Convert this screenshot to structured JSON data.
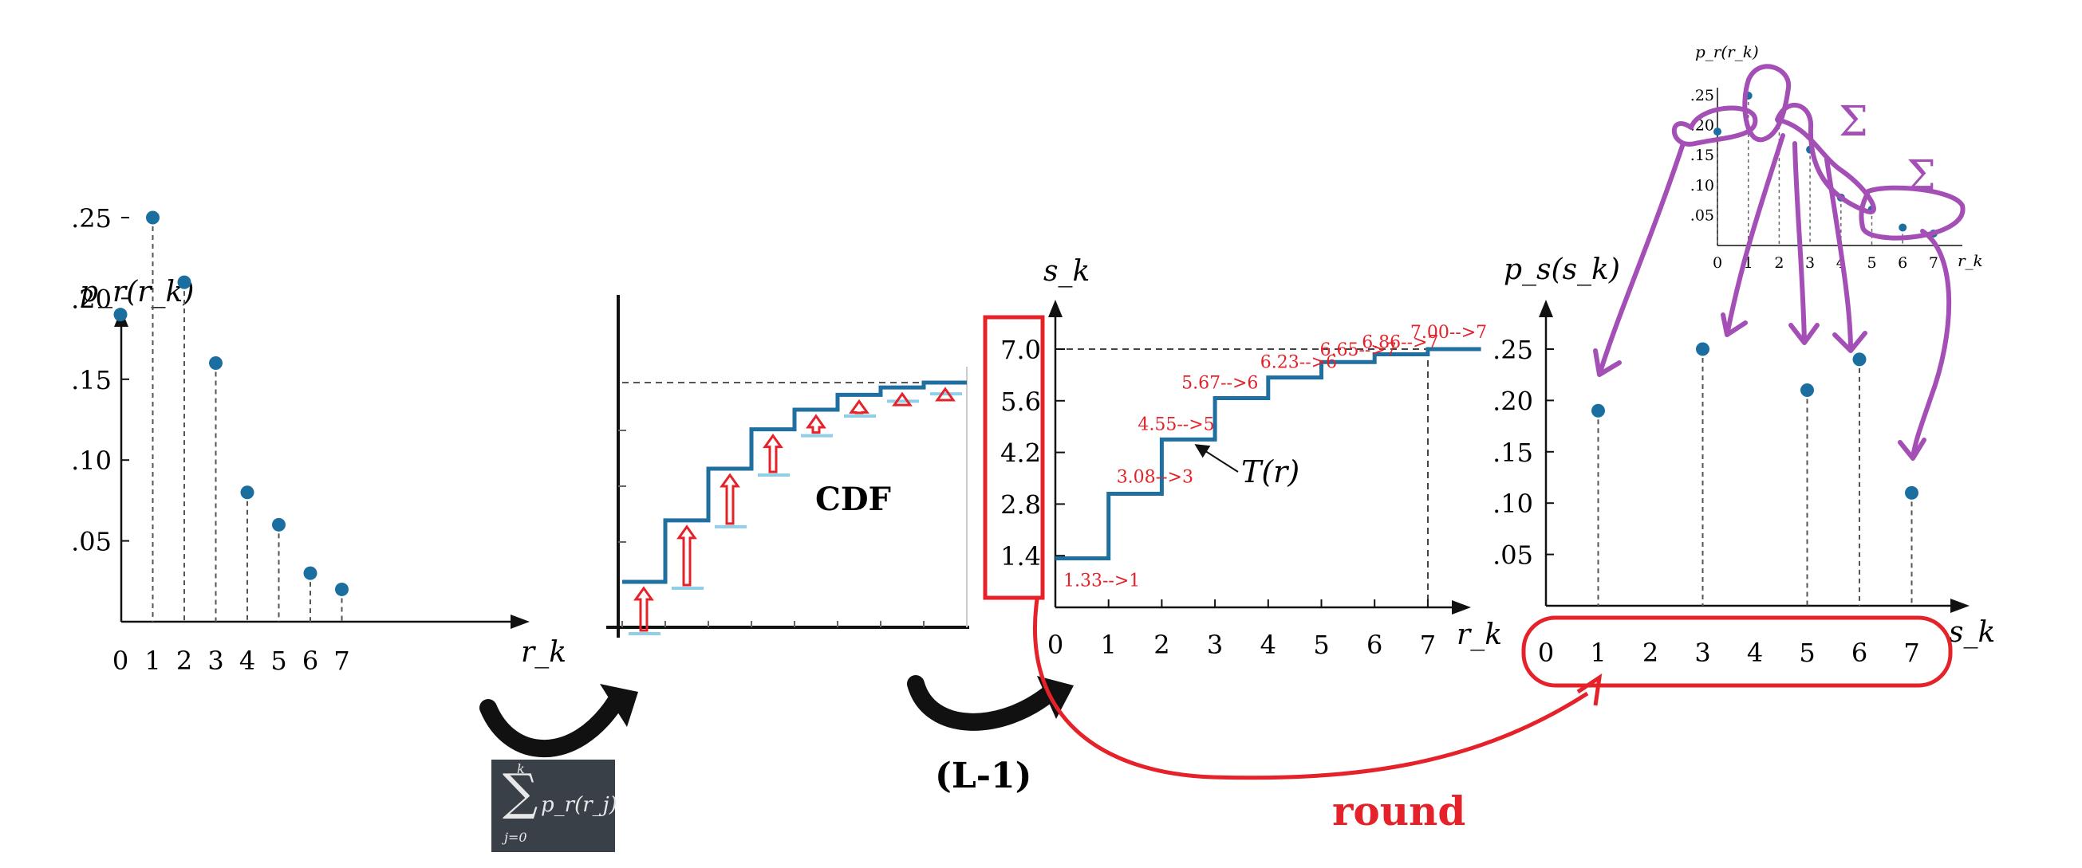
{
  "histogram_input": {
    "ylabel": "p_r(r_k)",
    "xlabel": "r_k",
    "yticks": [
      ".05",
      ".10",
      ".15",
      ".20",
      ".25"
    ],
    "xticks": [
      "0",
      "1",
      "2",
      "3",
      "4",
      "5",
      "6",
      "7"
    ]
  },
  "cdf_panel": {
    "label": "CDF"
  },
  "sum_formula": {
    "upper": "k",
    "lower": "j=0",
    "term": "p_r(r_j)"
  },
  "scale_note": "(L-1)",
  "transform": {
    "ylabel": "s_k",
    "xlabel": "r_k",
    "curve_label": "T(r)",
    "yticks": [
      "1.4",
      "2.8",
      "4.2",
      "5.6",
      "7.0"
    ],
    "xticks": [
      "0",
      "1",
      "2",
      "3",
      "4",
      "5",
      "6",
      "7"
    ],
    "round_annotations": [
      "1.33-->1",
      "3.08-->3",
      "4.55-->5",
      "5.67-->6",
      "6.23-->6",
      "6.65-->7",
      "6.86-->7",
      "7.00-->7"
    ]
  },
  "round_label": "round",
  "histogram_output": {
    "ylabel": "p_s(s_k)",
    "xlabel": "s_k",
    "yticks": [
      ".05",
      ".10",
      ".15",
      ".20",
      ".25"
    ],
    "xticks": [
      "0",
      "1",
      "2",
      "3",
      "4",
      "5",
      "6",
      "7"
    ]
  },
  "inset": {
    "ylabel": "p_r(r_k)",
    "xlabel": "r_k",
    "yticks": [
      ".05",
      ".10",
      ".15",
      ".20",
      ".25"
    ],
    "xticks": [
      "0",
      "1",
      "2",
      "3",
      "4",
      "5",
      "6",
      "7"
    ],
    "sigma": "Σ"
  },
  "chart_data": [
    {
      "type": "scatter",
      "title": "",
      "xlabel": "r_k",
      "ylabel": "p_r(r_k)",
      "x": [
        0,
        1,
        2,
        3,
        4,
        5,
        6,
        7
      ],
      "values": [
        0.19,
        0.25,
        0.21,
        0.16,
        0.08,
        0.06,
        0.03,
        0.02
      ],
      "ylim": [
        0,
        0.27
      ]
    },
    {
      "type": "line",
      "title": "",
      "xlabel": "r_k",
      "ylabel": "s_k",
      "x": [
        0,
        1,
        2,
        3,
        4,
        5,
        6,
        7
      ],
      "values": [
        1.33,
        3.08,
        4.55,
        5.67,
        6.23,
        6.65,
        6.86,
        7.0
      ],
      "ylim": [
        0,
        7.0
      ]
    },
    {
      "type": "scatter",
      "title": "",
      "xlabel": "s_k",
      "ylabel": "p_s(s_k)",
      "x": [
        1,
        3,
        5,
        6,
        7
      ],
      "values": [
        0.19,
        0.25,
        0.21,
        0.24,
        0.11
      ],
      "ylim": [
        0,
        0.27
      ]
    }
  ],
  "colors": {
    "point": "#1a6fa0",
    "step": "#1f6fa0",
    "annotation_red": "#e52229",
    "marker_purple": "#a44fb5",
    "ink": "#111111",
    "cdf_ledge": "#8fd0e8"
  }
}
